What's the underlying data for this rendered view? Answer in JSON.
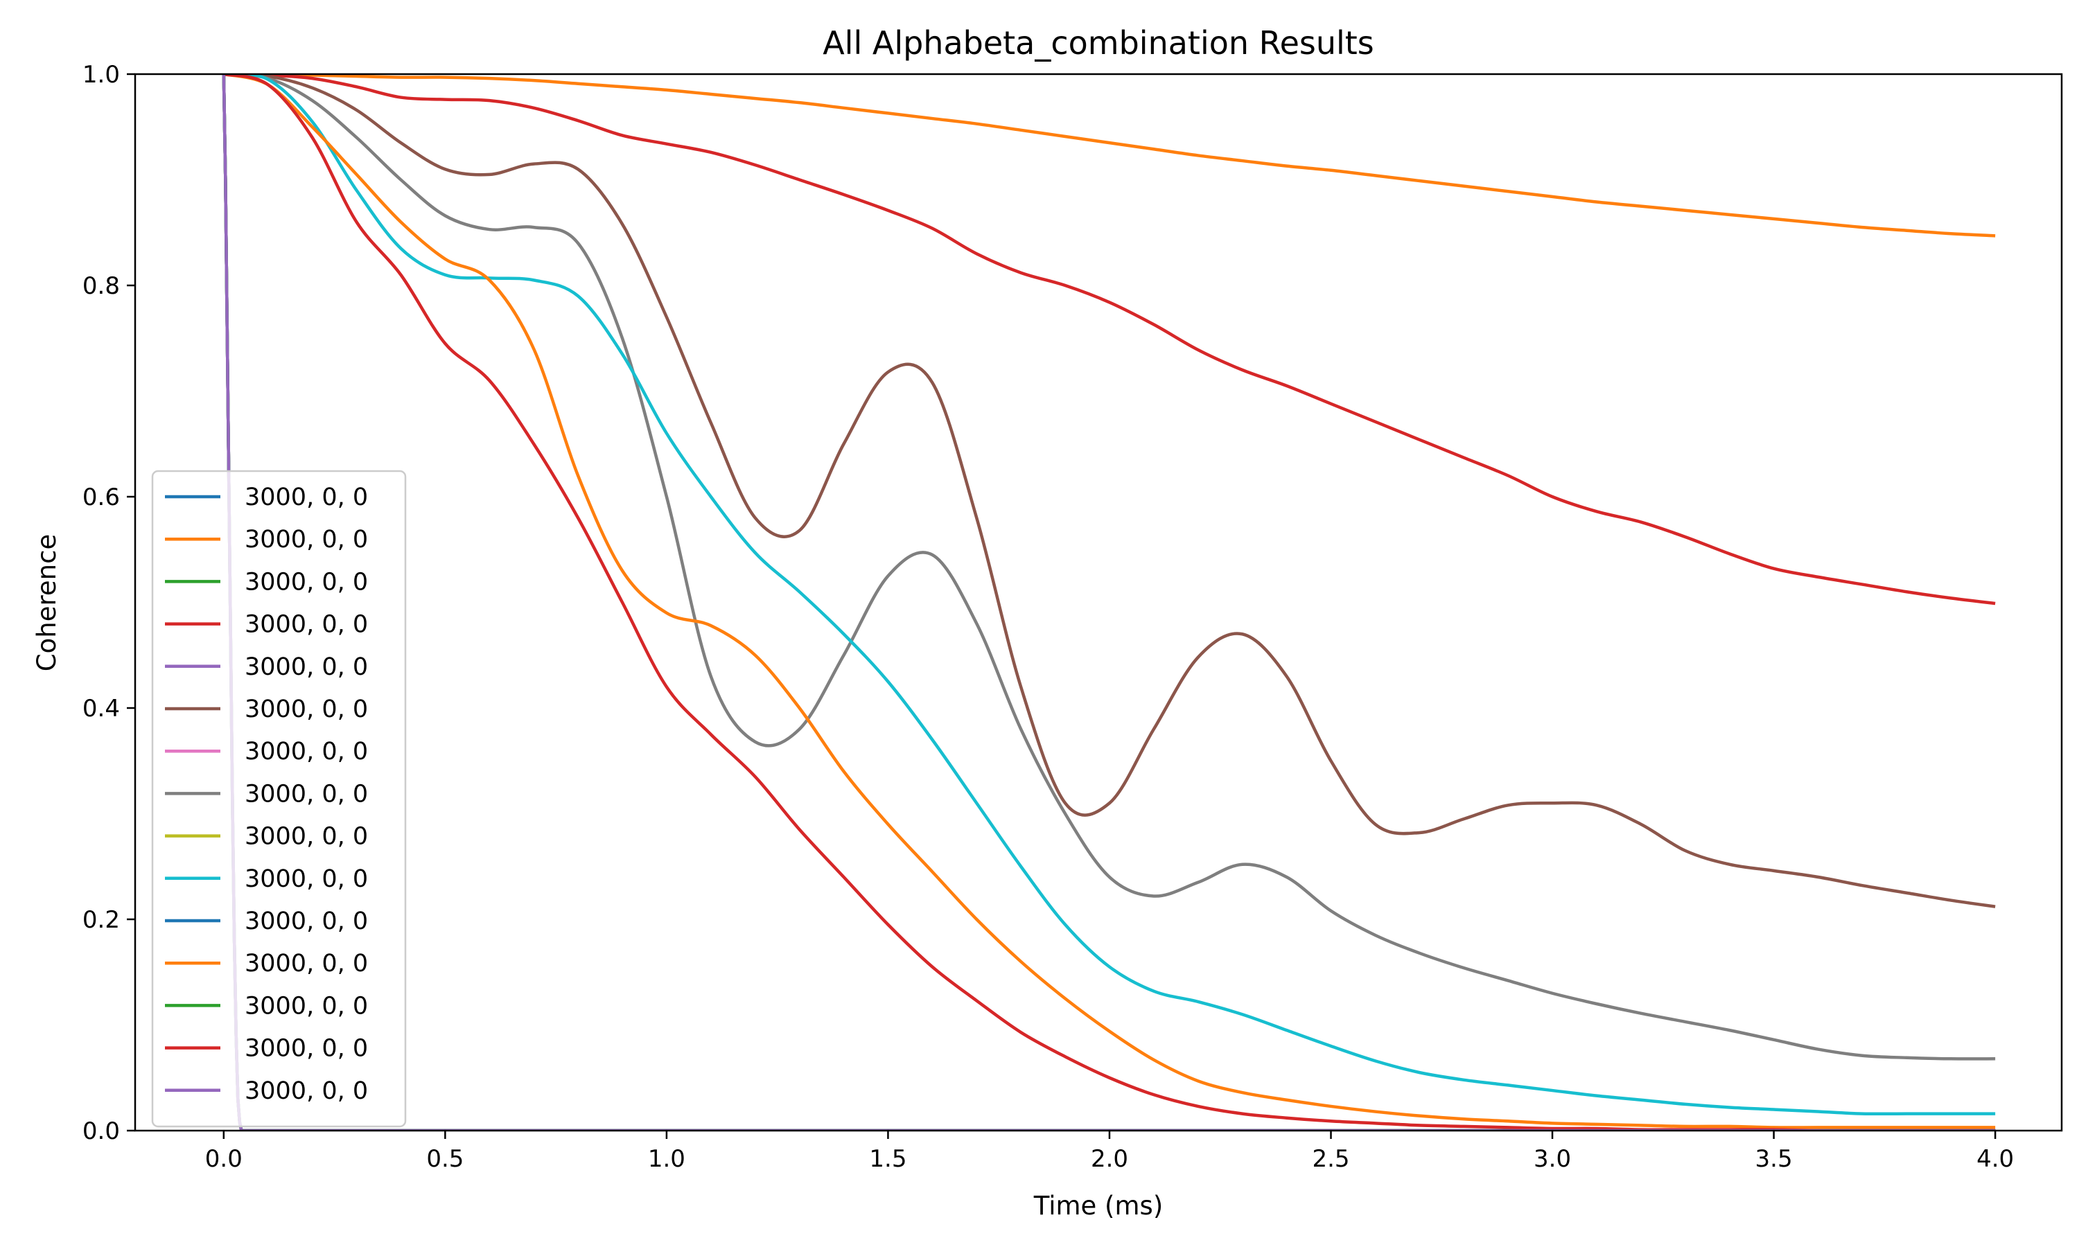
{
  "chart_data": {
    "type": "line",
    "title": "All Alphabeta_combination Results",
    "xlabel": "Time (ms)",
    "ylabel": "Coherence",
    "xlim": [
      -0.2,
      4.15
    ],
    "ylim": [
      0.0,
      1.0
    ],
    "xticks": [
      0.0,
      0.5,
      1.0,
      1.5,
      2.0,
      2.5,
      3.0,
      3.5,
      4.0
    ],
    "xtick_labels": [
      "0.0",
      "0.5",
      "1.0",
      "1.5",
      "2.0",
      "2.5",
      "3.0",
      "3.5",
      "4.0"
    ],
    "yticks": [
      0.0,
      0.2,
      0.4,
      0.6,
      0.8,
      1.0
    ],
    "ytick_labels": [
      "0.0",
      "0.2",
      "0.4",
      "0.6",
      "0.8",
      "1.0"
    ],
    "grid": false,
    "legend_position": "lower-left",
    "series": [
      {
        "name": "3000, 0, 0",
        "color": "#1f77b4",
        "x": [
          0,
          0.004,
          0.008,
          0.012,
          0.016,
          0.02,
          0.024,
          0.028,
          0.032,
          0.036,
          0.04,
          4.0
        ],
        "y": [
          1.0,
          0.9,
          0.75,
          0.6,
          0.45,
          0.3,
          0.18,
          0.09,
          0.03,
          0.008,
          0.0,
          0.0
        ]
      },
      {
        "name": "3000, 0, 0",
        "color": "#ff7f0e",
        "x": [
          0,
          0.1,
          0.2,
          0.3,
          0.4,
          0.5,
          0.6,
          0.7,
          0.8,
          0.9,
          1.0,
          1.1,
          1.2,
          1.3,
          1.4,
          1.5,
          1.6,
          1.7,
          1.8,
          1.9,
          2.0,
          2.1,
          2.2,
          2.3,
          2.4,
          2.5,
          2.6,
          2.7,
          2.8,
          2.9,
          3.0,
          3.1,
          3.2,
          3.3,
          3.4,
          3.5,
          3.6,
          3.7,
          3.8,
          3.9,
          4.0
        ],
        "y": [
          1.0,
          1.0,
          0.999,
          0.998,
          0.997,
          0.997,
          0.996,
          0.994,
          0.991,
          0.988,
          0.985,
          0.981,
          0.977,
          0.973,
          0.968,
          0.963,
          0.958,
          0.953,
          0.947,
          0.941,
          0.935,
          0.929,
          0.923,
          0.918,
          0.913,
          0.909,
          0.904,
          0.899,
          0.894,
          0.889,
          0.884,
          0.879,
          0.875,
          0.871,
          0.867,
          0.863,
          0.859,
          0.855,
          0.852,
          0.849,
          0.847
        ]
      },
      {
        "name": "3000, 0, 0",
        "color": "#2ca02c",
        "x": [
          0,
          0.004,
          0.008,
          0.012,
          0.016,
          0.02,
          0.024,
          0.028,
          0.032,
          0.036,
          0.04,
          4.0
        ],
        "y": [
          1.0,
          0.9,
          0.75,
          0.6,
          0.45,
          0.3,
          0.18,
          0.09,
          0.03,
          0.008,
          0.0,
          0.0
        ]
      },
      {
        "name": "3000, 0, 0",
        "color": "#d62728",
        "x": [
          0,
          0.1,
          0.2,
          0.3,
          0.4,
          0.5,
          0.6,
          0.7,
          0.8,
          0.9,
          1.0,
          1.1,
          1.2,
          1.3,
          1.4,
          1.5,
          1.6,
          1.7,
          1.8,
          1.9,
          2.0,
          2.1,
          2.2,
          2.3,
          2.4,
          2.5,
          2.6,
          2.7,
          2.8,
          2.9,
          3.0,
          3.1,
          3.2,
          3.3,
          3.4,
          3.5,
          3.6,
          3.7,
          3.8,
          3.9,
          4.0
        ],
        "y": [
          1.0,
          0.999,
          0.996,
          0.988,
          0.978,
          0.976,
          0.975,
          0.968,
          0.956,
          0.942,
          0.934,
          0.926,
          0.914,
          0.9,
          0.886,
          0.871,
          0.854,
          0.83,
          0.812,
          0.8,
          0.784,
          0.763,
          0.739,
          0.72,
          0.705,
          0.688,
          0.671,
          0.654,
          0.637,
          0.62,
          0.6,
          0.586,
          0.576,
          0.562,
          0.546,
          0.532,
          0.524,
          0.517,
          0.51,
          0.504,
          0.499
        ]
      },
      {
        "name": "3000, 0, 0",
        "color": "#9467bd",
        "x": [
          0,
          0.004,
          0.008,
          0.012,
          0.016,
          0.02,
          0.024,
          0.028,
          0.032,
          0.036,
          0.04,
          4.0
        ],
        "y": [
          1.0,
          0.9,
          0.75,
          0.6,
          0.45,
          0.3,
          0.18,
          0.09,
          0.03,
          0.008,
          0.0,
          0.0
        ]
      },
      {
        "name": "3000, 0, 0",
        "color": "#8c564b",
        "x": [
          0,
          0.1,
          0.2,
          0.3,
          0.4,
          0.5,
          0.6,
          0.7,
          0.8,
          0.9,
          1.0,
          1.1,
          1.2,
          1.3,
          1.4,
          1.5,
          1.6,
          1.7,
          1.8,
          1.9,
          2.0,
          2.1,
          2.2,
          2.3,
          2.4,
          2.5,
          2.6,
          2.7,
          2.8,
          2.9,
          3.0,
          3.1,
          3.2,
          3.3,
          3.4,
          3.5,
          3.6,
          3.7,
          3.8,
          3.9,
          4.0
        ],
        "y": [
          1.0,
          0.998,
          0.987,
          0.966,
          0.935,
          0.91,
          0.905,
          0.915,
          0.91,
          0.858,
          0.77,
          0.67,
          0.58,
          0.568,
          0.65,
          0.718,
          0.708,
          0.58,
          0.42,
          0.31,
          0.31,
          0.38,
          0.448,
          0.47,
          0.43,
          0.35,
          0.29,
          0.282,
          0.295,
          0.308,
          0.31,
          0.308,
          0.29,
          0.265,
          0.252,
          0.246,
          0.24,
          0.232,
          0.225,
          0.218,
          0.212
        ]
      },
      {
        "name": "3000, 0, 0",
        "color": "#e377c2",
        "x": [
          0,
          0.004,
          0.008,
          0.012,
          0.016,
          0.02,
          0.024,
          0.028,
          0.032,
          0.036,
          0.04,
          4.0
        ],
        "y": [
          1.0,
          0.9,
          0.75,
          0.6,
          0.45,
          0.3,
          0.18,
          0.09,
          0.03,
          0.008,
          0.0,
          0.0
        ]
      },
      {
        "name": "3000, 0, 0",
        "color": "#7f7f7f",
        "x": [
          0,
          0.1,
          0.2,
          0.3,
          0.4,
          0.5,
          0.6,
          0.7,
          0.8,
          0.9,
          1.0,
          1.1,
          1.2,
          1.3,
          1.4,
          1.5,
          1.6,
          1.7,
          1.8,
          1.9,
          2.0,
          2.1,
          2.2,
          2.3,
          2.4,
          2.5,
          2.6,
          2.7,
          2.8,
          2.9,
          3.0,
          3.1,
          3.2,
          3.3,
          3.4,
          3.5,
          3.6,
          3.7,
          3.8,
          3.9,
          4.0
        ],
        "y": [
          1.0,
          0.996,
          0.975,
          0.94,
          0.9,
          0.866,
          0.853,
          0.855,
          0.84,
          0.75,
          0.6,
          0.43,
          0.368,
          0.38,
          0.45,
          0.525,
          0.545,
          0.48,
          0.38,
          0.3,
          0.24,
          0.222,
          0.235,
          0.252,
          0.24,
          0.208,
          0.185,
          0.168,
          0.154,
          0.142,
          0.13,
          0.12,
          0.111,
          0.103,
          0.095,
          0.086,
          0.077,
          0.071,
          0.069,
          0.068,
          0.068
        ]
      },
      {
        "name": "3000, 0, 0",
        "color": "#bcbd22",
        "x": [
          0,
          0.004,
          0.008,
          0.012,
          0.016,
          0.02,
          0.024,
          0.028,
          0.032,
          0.036,
          0.04,
          4.0
        ],
        "y": [
          1.0,
          0.9,
          0.75,
          0.6,
          0.45,
          0.3,
          0.18,
          0.09,
          0.03,
          0.008,
          0.0,
          0.0
        ]
      },
      {
        "name": "3000, 0, 0",
        "color": "#17becf",
        "x": [
          0,
          0.1,
          0.2,
          0.3,
          0.4,
          0.5,
          0.6,
          0.7,
          0.8,
          0.9,
          1.0,
          1.1,
          1.2,
          1.3,
          1.4,
          1.5,
          1.6,
          1.7,
          1.8,
          1.9,
          2.0,
          2.1,
          2.2,
          2.3,
          2.4,
          2.5,
          2.6,
          2.7,
          2.8,
          2.9,
          3.0,
          3.1,
          3.2,
          3.3,
          3.4,
          3.5,
          3.6,
          3.7,
          3.8,
          3.9,
          4.0
        ],
        "y": [
          1.0,
          0.995,
          0.955,
          0.89,
          0.835,
          0.81,
          0.807,
          0.805,
          0.79,
          0.735,
          0.66,
          0.6,
          0.547,
          0.51,
          0.47,
          0.425,
          0.37,
          0.31,
          0.25,
          0.195,
          0.155,
          0.132,
          0.122,
          0.11,
          0.095,
          0.08,
          0.066,
          0.055,
          0.048,
          0.043,
          0.038,
          0.033,
          0.029,
          0.025,
          0.022,
          0.02,
          0.018,
          0.016,
          0.016,
          0.016,
          0.016
        ]
      },
      {
        "name": "3000, 0, 0",
        "color": "#1f77b4",
        "x": [
          0,
          0.004,
          0.008,
          0.012,
          0.016,
          0.02,
          0.024,
          0.028,
          0.032,
          0.036,
          0.04,
          4.0
        ],
        "y": [
          1.0,
          0.9,
          0.75,
          0.6,
          0.45,
          0.3,
          0.18,
          0.09,
          0.03,
          0.008,
          0.0,
          0.0
        ]
      },
      {
        "name": "3000, 0, 0",
        "color": "#ff7f0e",
        "x": [
          0,
          0.1,
          0.2,
          0.3,
          0.4,
          0.5,
          0.6,
          0.7,
          0.8,
          0.9,
          1.0,
          1.1,
          1.2,
          1.3,
          1.4,
          1.5,
          1.6,
          1.7,
          1.8,
          1.9,
          2.0,
          2.1,
          2.2,
          2.3,
          2.4,
          2.5,
          2.6,
          2.7,
          2.8,
          2.9,
          3.0,
          3.1,
          3.2,
          3.3,
          3.4,
          3.5,
          3.6,
          3.7,
          3.8,
          3.9,
          4.0
        ],
        "y": [
          1.0,
          0.99,
          0.95,
          0.905,
          0.86,
          0.825,
          0.805,
          0.74,
          0.62,
          0.53,
          0.49,
          0.478,
          0.45,
          0.4,
          0.34,
          0.29,
          0.245,
          0.2,
          0.16,
          0.125,
          0.094,
          0.067,
          0.047,
          0.036,
          0.029,
          0.023,
          0.018,
          0.014,
          0.011,
          0.009,
          0.007,
          0.006,
          0.005,
          0.004,
          0.004,
          0.003,
          0.003,
          0.003,
          0.003,
          0.003,
          0.003
        ]
      },
      {
        "name": "3000, 0, 0",
        "color": "#2ca02c",
        "x": [
          0,
          0.004,
          0.008,
          0.012,
          0.016,
          0.02,
          0.024,
          0.028,
          0.032,
          0.036,
          0.04,
          4.0
        ],
        "y": [
          1.0,
          0.9,
          0.75,
          0.6,
          0.45,
          0.3,
          0.18,
          0.09,
          0.03,
          0.008,
          0.0,
          0.0
        ]
      },
      {
        "name": "3000, 0, 0",
        "color": "#d62728",
        "x": [
          0,
          0.1,
          0.2,
          0.3,
          0.4,
          0.5,
          0.6,
          0.7,
          0.8,
          0.9,
          1.0,
          1.1,
          1.2,
          1.3,
          1.4,
          1.5,
          1.6,
          1.7,
          1.8,
          1.9,
          2.0,
          2.1,
          2.2,
          2.3,
          2.4,
          2.5,
          2.6,
          2.7,
          2.8,
          2.9,
          3.0,
          3.1,
          3.2,
          3.3,
          3.4,
          3.5,
          3.6,
          3.7,
          3.8,
          3.9,
          4.0
        ],
        "y": [
          1.0,
          0.99,
          0.94,
          0.86,
          0.81,
          0.745,
          0.71,
          0.65,
          0.58,
          0.5,
          0.42,
          0.375,
          0.335,
          0.285,
          0.24,
          0.195,
          0.155,
          0.123,
          0.093,
          0.07,
          0.05,
          0.034,
          0.023,
          0.016,
          0.012,
          0.009,
          0.007,
          0.005,
          0.004,
          0.003,
          0.002,
          0.002,
          0.001,
          0.001,
          0.001,
          0.001,
          0.0,
          0.0,
          0.0,
          0.0,
          0.0
        ]
      },
      {
        "name": "3000, 0, 0",
        "color": "#9467bd",
        "x": [
          0,
          0.004,
          0.008,
          0.012,
          0.016,
          0.02,
          0.024,
          0.028,
          0.032,
          0.036,
          0.04,
          4.0
        ],
        "y": [
          1.0,
          0.9,
          0.75,
          0.6,
          0.45,
          0.3,
          0.18,
          0.09,
          0.03,
          0.008,
          0.0,
          0.0
        ]
      }
    ]
  }
}
